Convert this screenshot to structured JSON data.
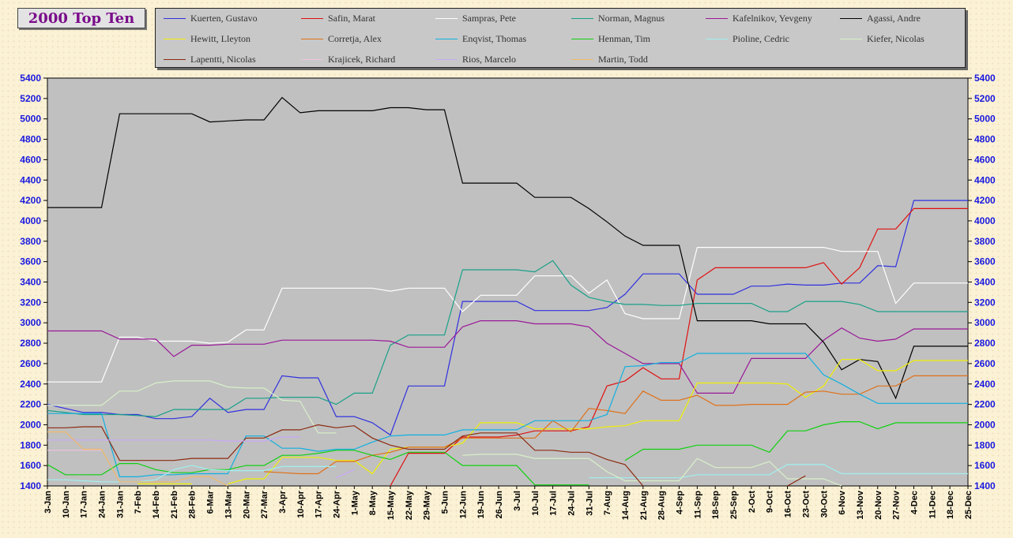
{
  "chart_data": {
    "type": "line",
    "title": "2000 Top Ten",
    "xlabel": "",
    "ylabel": "",
    "ylim": [
      1400,
      5400
    ],
    "yticks": [
      1400,
      1600,
      1800,
      2000,
      2200,
      2400,
      2600,
      2800,
      3000,
      3200,
      3400,
      3600,
      3800,
      4000,
      4200,
      4400,
      4600,
      4800,
      5000,
      5200,
      5400
    ],
    "grid": false,
    "legend": "top",
    "categories": [
      "3-Jan",
      "10-Jan",
      "17-Jan",
      "24-Jan",
      "31-Jan",
      "7-Feb",
      "14-Feb",
      "21-Feb",
      "28-Feb",
      "6-Mar",
      "13-Mar",
      "20-Mar",
      "27-Mar",
      "3-Apr",
      "10-Apr",
      "17-Apr",
      "24-Apr",
      "1-May",
      "8-May",
      "15-May",
      "22-May",
      "29-May",
      "5-Jun",
      "12-Jun",
      "19-Jun",
      "26-Jun",
      "3-Jul",
      "10-Jul",
      "17-Jul",
      "24-Jul",
      "31-Jul",
      "7-Aug",
      "14-Aug",
      "21-Aug",
      "28-Aug",
      "4-Sep",
      "11-Sep",
      "18-Sep",
      "25-Sep",
      "2-Oct",
      "9-Oct",
      "16-Oct",
      "23-Oct",
      "30-Oct",
      "6-Nov",
      "13-Nov",
      "20-Nov",
      "27-Nov",
      "4-Dec",
      "11-Dec",
      "18-Dec",
      "25-Dec"
    ],
    "series": [
      {
        "name": "Kuerten, Gustavo",
        "color": "#3030e0",
        "values": [
          2200,
          2160,
          2120,
          2120,
          2100,
          2100,
          2060,
          2060,
          2080,
          2260,
          2120,
          2150,
          2150,
          2480,
          2460,
          2460,
          2080,
          2080,
          2020,
          1900,
          2380,
          2380,
          2380,
          3210,
          3210,
          3210,
          3210,
          3120,
          3120,
          3120,
          3120,
          3150,
          3280,
          3480,
          3480,
          3480,
          3280,
          3280,
          3280,
          3360,
          3360,
          3380,
          3370,
          3370,
          3390,
          3390,
          3560,
          3550,
          4200,
          4200,
          4200,
          4200
        ]
      },
      {
        "name": "Safin, Marat",
        "color": "#e01010",
        "values": [
          null,
          null,
          null,
          null,
          null,
          null,
          null,
          null,
          null,
          null,
          null,
          null,
          null,
          null,
          null,
          null,
          null,
          null,
          null,
          1400,
          1720,
          1720,
          1720,
          1880,
          1880,
          1880,
          1900,
          1940,
          1940,
          1940,
          1980,
          2380,
          2430,
          2560,
          2450,
          2450,
          3420,
          3540,
          3540,
          3540,
          3540,
          3540,
          3540,
          3590,
          3380,
          3540,
          3920,
          3920,
          4120,
          4120,
          4120,
          4120
        ]
      },
      {
        "name": "Sampras, Pete",
        "color": "#ffffff",
        "values": [
          2420,
          2420,
          2420,
          2420,
          2860,
          2860,
          2820,
          2820,
          2820,
          2800,
          2810,
          2930,
          2930,
          3340,
          3340,
          3340,
          3340,
          3340,
          3340,
          3310,
          3340,
          3340,
          3340,
          3110,
          3270,
          3270,
          3270,
          3460,
          3460,
          3460,
          3290,
          3420,
          3090,
          3040,
          3040,
          3040,
          3740,
          3740,
          3740,
          3740,
          3740,
          3740,
          3740,
          3740,
          3700,
          3700,
          3700,
          3190,
          3390,
          3390,
          3390,
          3390
        ]
      },
      {
        "name": "Norman, Magnus",
        "color": "#18a088",
        "values": [
          2140,
          2120,
          2100,
          2100,
          2100,
          2090,
          2080,
          2150,
          2150,
          2150,
          2150,
          2260,
          2260,
          2270,
          2270,
          2270,
          2200,
          2310,
          2310,
          2780,
          2880,
          2880,
          2880,
          3520,
          3520,
          3520,
          3520,
          3500,
          3610,
          3370,
          3250,
          3210,
          3180,
          3180,
          3170,
          3170,
          3190,
          3190,
          3190,
          3190,
          3110,
          3110,
          3210,
          3210,
          3210,
          3180,
          3110,
          3110,
          3110,
          3110,
          3110,
          3110
        ]
      },
      {
        "name": "Kafelnikov, Yevgeny",
        "color": "#9a1898",
        "values": [
          2920,
          2920,
          2920,
          2920,
          2840,
          2840,
          2840,
          2670,
          2780,
          2780,
          2790,
          2790,
          2790,
          2830,
          2830,
          2830,
          2830,
          2830,
          2830,
          2820,
          2760,
          2760,
          2760,
          2960,
          3020,
          3020,
          3020,
          2990,
          2990,
          2990,
          2960,
          2800,
          2700,
          2600,
          2600,
          2600,
          2310,
          2310,
          2310,
          2650,
          2650,
          2650,
          2650,
          2830,
          2950,
          2850,
          2820,
          2840,
          2940,
          2940,
          2940,
          2940
        ]
      },
      {
        "name": "Agassi, Andre",
        "color": "#000000",
        "values": [
          4130,
          4130,
          4130,
          4130,
          5050,
          5050,
          5050,
          5050,
          5050,
          4970,
          4980,
          4990,
          4990,
          5210,
          5060,
          5080,
          5080,
          5080,
          5080,
          5110,
          5110,
          5090,
          5090,
          4370,
          4370,
          4370,
          4370,
          4230,
          4230,
          4230,
          4120,
          3990,
          3850,
          3760,
          3760,
          3760,
          3020,
          3020,
          3020,
          3020,
          2990,
          2990,
          2990,
          2810,
          2540,
          2640,
          2620,
          2260,
          2770,
          2770,
          2770,
          2770
        ]
      },
      {
        "name": "Hewitt, Lleyton",
        "color": "#f0f000",
        "values": [
          null,
          null,
          null,
          null,
          null,
          1420,
          1420,
          1420,
          1420,
          null,
          1420,
          1470,
          1470,
          1680,
          1680,
          1680,
          1650,
          1650,
          1520,
          1760,
          1780,
          1780,
          1780,
          1820,
          2020,
          2020,
          2020,
          1960,
          1960,
          1960,
          1960,
          1980,
          1990,
          2040,
          2040,
          2040,
          2410,
          2410,
          2410,
          2410,
          2410,
          2400,
          2270,
          2380,
          2640,
          2640,
          2530,
          2530,
          2630,
          2630,
          2630,
          2630
        ]
      },
      {
        "name": "Corretja, Alex",
        "color": "#e07018",
        "values": [
          null,
          null,
          null,
          null,
          null,
          null,
          null,
          null,
          null,
          null,
          null,
          null,
          1540,
          1530,
          1520,
          1520,
          1640,
          1640,
          1700,
          1730,
          1780,
          1780,
          1780,
          1870,
          1870,
          1870,
          1870,
          1870,
          2040,
          1930,
          2160,
          2140,
          2110,
          2330,
          2240,
          2240,
          2290,
          2190,
          2190,
          2200,
          2200,
          2200,
          2320,
          2330,
          2300,
          2300,
          2380,
          2380,
          2480,
          2480,
          2480,
          2480
        ]
      },
      {
        "name": "Enqvist, Thomas",
        "color": "#10b0e0",
        "values": [
          2110,
          2110,
          2110,
          2110,
          1490,
          1490,
          1510,
          1510,
          1520,
          1520,
          1520,
          1890,
          1890,
          1770,
          1770,
          1740,
          1760,
          1760,
          1830,
          1890,
          1900,
          1900,
          1900,
          1950,
          1950,
          1950,
          1950,
          2040,
          2040,
          2040,
          2040,
          2100,
          2570,
          2580,
          2610,
          2610,
          2700,
          2700,
          2700,
          2700,
          2700,
          2700,
          2700,
          2490,
          2400,
          2300,
          2210,
          2210,
          2210,
          2210,
          2210,
          2210
        ]
      },
      {
        "name": "Henman, Tim",
        "color": "#10d010",
        "values": [
          1610,
          1510,
          1510,
          1510,
          1620,
          1620,
          1560,
          1530,
          1530,
          1560,
          1560,
          1600,
          1600,
          1700,
          1700,
          1720,
          1750,
          1750,
          1700,
          1660,
          1730,
          1730,
          1730,
          1600,
          1600,
          1600,
          1600,
          1410,
          1410,
          1410,
          1410,
          null,
          1650,
          1760,
          1760,
          1760,
          1800,
          1800,
          1800,
          1800,
          1730,
          1940,
          1940,
          2000,
          2030,
          2030,
          1960,
          2020,
          2020,
          2020,
          2020,
          2020
        ]
      },
      {
        "name": "Pioline, Cedric",
        "color": "#a0f0f0",
        "values": [
          1460,
          1460,
          1450,
          1440,
          1440,
          1440,
          1460,
          1560,
          1600,
          1560,
          1550,
          1550,
          1550,
          1590,
          1590,
          1590,
          1590,
          null,
          null,
          null,
          null,
          null,
          null,
          null,
          null,
          null,
          null,
          null,
          null,
          null,
          1480,
          1480,
          1480,
          1480,
          1480,
          1480,
          1510,
          1510,
          1510,
          1510,
          1510,
          1610,
          1610,
          1610,
          1520,
          1520,
          1520,
          1520,
          1520,
          1520,
          1520,
          1520
        ]
      },
      {
        "name": "Kiefer, Nicolas",
        "color": "#d8f0c8",
        "values": [
          2190,
          2190,
          2190,
          2190,
          2330,
          2330,
          2410,
          2430,
          2430,
          2430,
          2370,
          2360,
          2360,
          2240,
          2230,
          1920,
          1920,
          null,
          null,
          null,
          null,
          null,
          null,
          1700,
          1710,
          1710,
          1710,
          1670,
          1670,
          1670,
          1670,
          1540,
          1450,
          1450,
          1450,
          1450,
          1670,
          1580,
          1580,
          1580,
          1640,
          1470,
          1470,
          1470,
          1400,
          null,
          null,
          null,
          null,
          null,
          null,
          null
        ]
      },
      {
        "name": "Lapentti, Nicolas",
        "color": "#8b2a10",
        "values": [
          1970,
          1970,
          1980,
          1980,
          1650,
          1650,
          1650,
          1650,
          1670,
          1670,
          1670,
          1870,
          1870,
          1950,
          1950,
          2000,
          1970,
          1990,
          1870,
          1800,
          1760,
          1760,
          1760,
          1890,
          1920,
          1920,
          1920,
          1750,
          1750,
          1730,
          1730,
          1660,
          1610,
          1400,
          null,
          null,
          null,
          null,
          null,
          null,
          null,
          1400,
          1500,
          null,
          null,
          null,
          null,
          null,
          null,
          null,
          null,
          null
        ]
      },
      {
        "name": "Krajicek, Richard",
        "color": "#f0c0e0",
        "values": [
          1750,
          1750,
          1750,
          1750,
          null,
          null,
          null,
          null,
          null,
          null,
          null,
          null,
          null,
          null,
          null,
          null,
          null,
          null,
          null,
          null,
          null,
          null,
          null,
          null,
          null,
          null,
          null,
          null,
          null,
          null,
          null,
          null,
          null,
          null,
          null,
          null,
          null,
          null,
          null,
          null,
          null,
          null,
          null,
          null,
          null,
          null,
          null,
          null,
          null,
          null,
          null,
          null
        ]
      },
      {
        "name": "Rios, Marcelo",
        "color": "#c8a8f8",
        "values": [
          1850,
          1850,
          1850,
          1850,
          1850,
          1850,
          1850,
          1850,
          1850,
          1850,
          1840,
          1840,
          1840,
          1880,
          1880,
          null,
          1480,
          1560,
          null,
          null,
          null,
          null,
          null,
          null,
          null,
          null,
          null,
          null,
          null,
          null,
          null,
          null,
          null,
          null,
          null,
          null,
          null,
          null,
          null,
          null,
          null,
          null,
          null,
          null,
          null,
          null,
          null,
          null,
          null,
          null,
          null,
          null
        ]
      },
      {
        "name": "Martin, Todd",
        "color": "#f0b868",
        "values": [
          1930,
          1930,
          1760,
          1760,
          1440,
          1440,
          1440,
          1440,
          1490,
          1490,
          1400,
          null,
          null,
          null,
          null,
          null,
          null,
          null,
          null,
          null,
          null,
          null,
          null,
          null,
          null,
          null,
          null,
          null,
          null,
          null,
          null,
          null,
          null,
          null,
          null,
          null,
          null,
          null,
          null,
          null,
          null,
          null,
          null,
          null,
          null,
          null,
          null,
          null,
          null,
          null,
          null,
          null
        ]
      }
    ]
  }
}
